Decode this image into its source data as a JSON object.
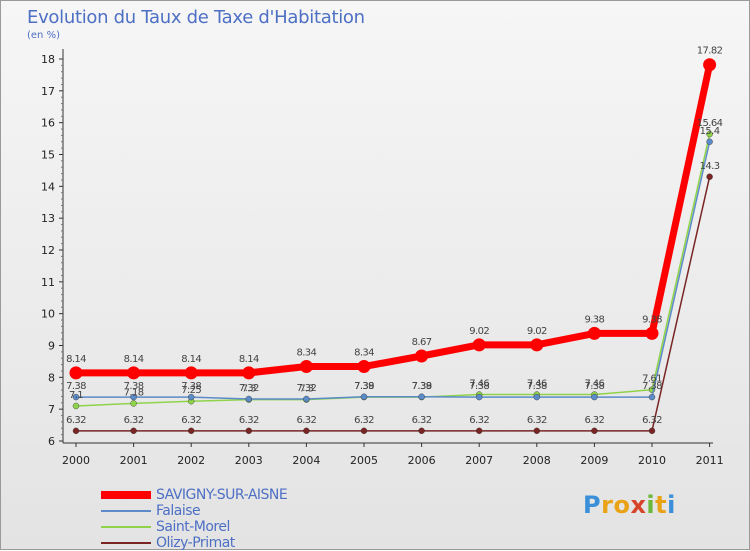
{
  "chart_data": {
    "type": "line",
    "title": "Evolution du Taux de Taxe d'Habitation",
    "subtitle": "(en %)",
    "xlabel": "",
    "ylabel": "",
    "categories": [
      "2000",
      "2001",
      "2002",
      "2003",
      "2004",
      "2005",
      "2006",
      "2007",
      "2008",
      "2009",
      "2010",
      "2011"
    ],
    "ylim": [
      6,
      18
    ],
    "yticks": [
      "6",
      "7",
      "8",
      "9",
      "10",
      "11",
      "12",
      "13",
      "14",
      "15",
      "16",
      "17",
      "18"
    ],
    "grid": false,
    "legend_position": "bottom-left",
    "series": [
      {
        "name": "SAVIGNY-SUR-AISNE",
        "color": "#ff0000",
        "values": [
          8.14,
          8.14,
          8.14,
          8.14,
          8.34,
          8.34,
          8.67,
          9.02,
          9.02,
          9.38,
          9.38,
          17.82
        ],
        "labels": [
          "8.14",
          "8.14",
          "8.14",
          "8.14",
          "8.34",
          "8.34",
          "8.67",
          "9.02",
          "9.02",
          "9.38",
          "9.38",
          "17.82"
        ]
      },
      {
        "name": "Falaise",
        "color": "#5b8bc8",
        "values": [
          7.38,
          7.38,
          7.38,
          7.32,
          7.32,
          7.39,
          7.39,
          7.38,
          7.38,
          7.38,
          7.38,
          15.4
        ],
        "labels": [
          "7.38",
          "7.38",
          "7.38",
          "7.32",
          "7.32",
          "7.39",
          "7.39",
          "7.38",
          "7.38",
          "7.38",
          "7.38",
          "15.4"
        ]
      },
      {
        "name": "Saint-Morel",
        "color": "#8fd34a",
        "values": [
          7.1,
          7.18,
          7.25,
          7.3,
          7.3,
          7.38,
          7.38,
          7.46,
          7.46,
          7.46,
          7.61,
          15.64
        ],
        "labels": [
          "7.1",
          "7.18",
          "7.25",
          "7.3",
          "7.3",
          "7.38",
          "7.38",
          "7.46",
          "7.46",
          "7.46",
          "7.61",
          "15.64"
        ]
      },
      {
        "name": "Olizy-Primat",
        "color": "#7a2424",
        "values": [
          6.32,
          6.32,
          6.32,
          6.32,
          6.32,
          6.32,
          6.32,
          6.32,
          6.32,
          6.32,
          6.32,
          14.3
        ],
        "labels": [
          "6.32",
          "6.32",
          "6.32",
          "6.32",
          "6.32",
          "6.32",
          "6.32",
          "6.32",
          "6.32",
          "6.32",
          "6.32",
          "14.3"
        ]
      }
    ]
  },
  "branding": {
    "logo_letters": [
      {
        "ch": "P",
        "color": "#3a8fd8"
      },
      {
        "ch": "r",
        "color": "#e8a316"
      },
      {
        "ch": "o",
        "color": "#e8a316"
      },
      {
        "ch": "x",
        "color": "#d8442a"
      },
      {
        "ch": "i",
        "color": "#6cb83a"
      },
      {
        "ch": "t",
        "color": "#e8a316"
      },
      {
        "ch": "i",
        "color": "#3a8fd8"
      }
    ]
  }
}
